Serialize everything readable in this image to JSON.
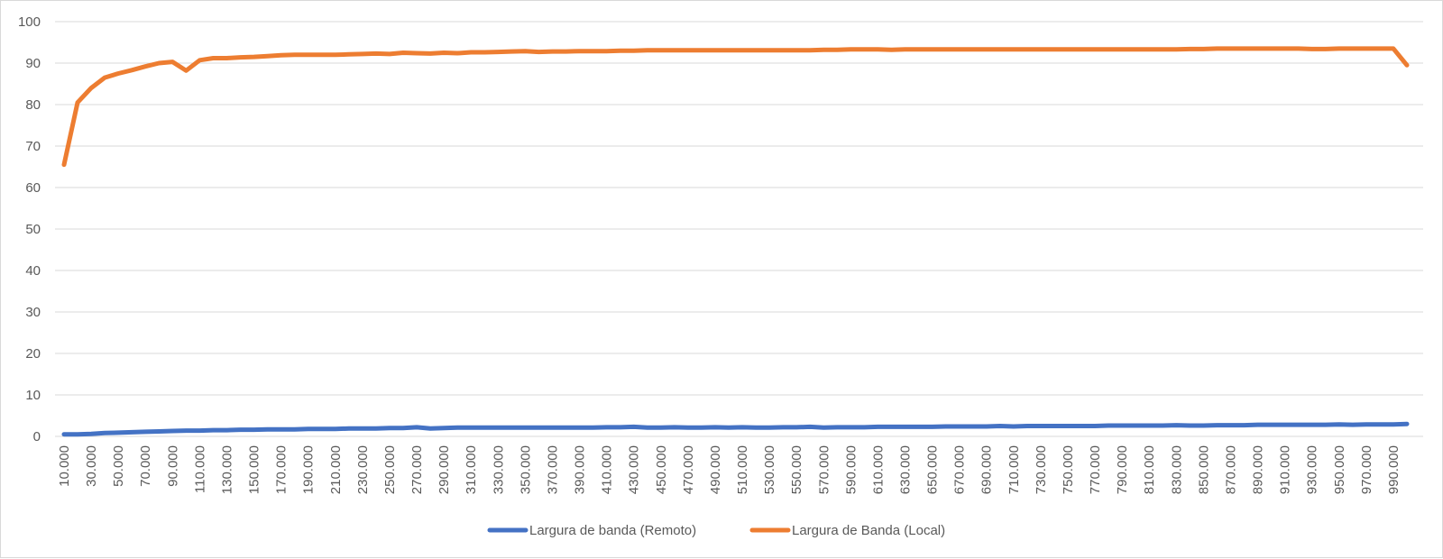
{
  "chart_data": {
    "type": "line",
    "title": "",
    "xlabel": "",
    "ylabel": "",
    "ylim": [
      0,
      100
    ],
    "yticks": [
      0,
      10,
      20,
      30,
      40,
      50,
      60,
      70,
      80,
      90,
      100
    ],
    "x": [
      10000,
      20000,
      30000,
      40000,
      50000,
      60000,
      70000,
      80000,
      90000,
      100000,
      110000,
      120000,
      130000,
      140000,
      150000,
      160000,
      170000,
      180000,
      190000,
      200000,
      210000,
      220000,
      230000,
      240000,
      250000,
      260000,
      270000,
      280000,
      290000,
      300000,
      310000,
      320000,
      330000,
      340000,
      350000,
      360000,
      370000,
      380000,
      390000,
      400000,
      410000,
      420000,
      430000,
      440000,
      450000,
      460000,
      470000,
      480000,
      490000,
      500000,
      510000,
      520000,
      530000,
      540000,
      550000,
      560000,
      570000,
      580000,
      590000,
      600000,
      610000,
      620000,
      630000,
      640000,
      650000,
      660000,
      670000,
      680000,
      690000,
      700000,
      710000,
      720000,
      730000,
      740000,
      750000,
      760000,
      770000,
      780000,
      790000,
      800000,
      810000,
      820000,
      830000,
      840000,
      850000,
      860000,
      870000,
      880000,
      890000,
      900000,
      910000,
      920000,
      930000,
      940000,
      950000,
      960000,
      970000,
      980000,
      990000,
      1000000
    ],
    "tick_labels": [
      "10.000",
      "30.000",
      "50.000",
      "70.000",
      "90.000",
      "110.000",
      "130.000",
      "150.000",
      "170.000",
      "190.000",
      "210.000",
      "230.000",
      "250.000",
      "270.000",
      "290.000",
      "310.000",
      "330.000",
      "350.000",
      "370.000",
      "390.000",
      "410.000",
      "430.000",
      "450.000",
      "470.000",
      "490.000",
      "510.000",
      "530.000",
      "550.000",
      "570.000",
      "590.000",
      "610.000",
      "630.000",
      "650.000",
      "670.000",
      "690.000",
      "710.000",
      "730.000",
      "750.000",
      "770.000",
      "790.000",
      "810.000",
      "830.000",
      "850.000",
      "870.000",
      "890.000",
      "910.000",
      "930.000",
      "950.000",
      "970.000",
      "990.000"
    ],
    "series": [
      {
        "name": "Largura de banda (Remoto)",
        "color": "#4472C4",
        "values": [
          0.5,
          0.5,
          0.6,
          0.8,
          0.9,
          1.0,
          1.1,
          1.2,
          1.3,
          1.4,
          1.4,
          1.5,
          1.5,
          1.6,
          1.6,
          1.7,
          1.7,
          1.7,
          1.8,
          1.8,
          1.8,
          1.9,
          1.9,
          1.9,
          2.0,
          2.0,
          2.2,
          1.9,
          2.0,
          2.1,
          2.1,
          2.1,
          2.1,
          2.1,
          2.1,
          2.1,
          2.1,
          2.1,
          2.1,
          2.1,
          2.2,
          2.2,
          2.3,
          2.1,
          2.1,
          2.2,
          2.1,
          2.1,
          2.2,
          2.1,
          2.2,
          2.1,
          2.1,
          2.2,
          2.2,
          2.3,
          2.1,
          2.2,
          2.2,
          2.2,
          2.3,
          2.3,
          2.3,
          2.3,
          2.3,
          2.4,
          2.4,
          2.4,
          2.4,
          2.5,
          2.4,
          2.5,
          2.5,
          2.5,
          2.5,
          2.5,
          2.5,
          2.6,
          2.6,
          2.6,
          2.6,
          2.6,
          2.7,
          2.6,
          2.6,
          2.7,
          2.7,
          2.7,
          2.8,
          2.8,
          2.8,
          2.8,
          2.8,
          2.8,
          2.9,
          2.8,
          2.9,
          2.9,
          2.9,
          3.0
        ]
      },
      {
        "name": "Largura de Banda (Local)",
        "color": "#ED7D31",
        "values": [
          65.5,
          80.5,
          84.0,
          86.5,
          87.5,
          88.3,
          89.2,
          90.0,
          90.3,
          88.2,
          90.7,
          91.2,
          91.2,
          91.4,
          91.5,
          91.7,
          91.9,
          92.0,
          92.0,
          92.0,
          92.0,
          92.1,
          92.2,
          92.3,
          92.2,
          92.5,
          92.4,
          92.3,
          92.5,
          92.4,
          92.6,
          92.6,
          92.7,
          92.8,
          92.9,
          92.7,
          92.8,
          92.8,
          92.9,
          92.9,
          92.9,
          93.0,
          93.0,
          93.1,
          93.1,
          93.1,
          93.1,
          93.1,
          93.1,
          93.1,
          93.1,
          93.1,
          93.1,
          93.1,
          93.1,
          93.1,
          93.2,
          93.2,
          93.3,
          93.3,
          93.3,
          93.2,
          93.3,
          93.3,
          93.3,
          93.3,
          93.3,
          93.3,
          93.3,
          93.3,
          93.3,
          93.3,
          93.3,
          93.3,
          93.3,
          93.3,
          93.3,
          93.3,
          93.3,
          93.3,
          93.3,
          93.3,
          93.3,
          93.4,
          93.4,
          93.5,
          93.5,
          93.5,
          93.5,
          93.5,
          93.5,
          93.5,
          93.4,
          93.4,
          93.5,
          93.5,
          93.5,
          93.5,
          93.5,
          89.5
        ]
      }
    ],
    "grid": true,
    "legend_position": "bottom"
  }
}
